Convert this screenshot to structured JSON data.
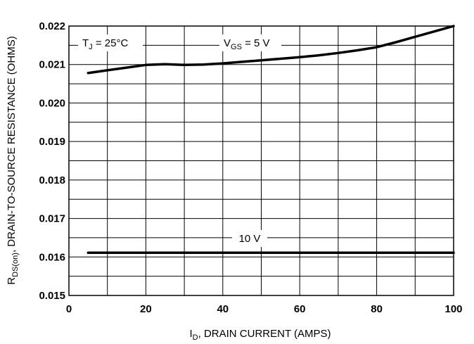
{
  "chart_data": {
    "type": "line",
    "xlabel": {
      "main": "I",
      "sub": "D",
      "rest": ", DRAIN CURRENT (AMPS)"
    },
    "ylabel": {
      "main": "R",
      "sub": "DS(on)",
      "rest": ", DRAIN-TO-SOURCE RESISTANCE (OHMS)"
    },
    "xlim": [
      0,
      100
    ],
    "ylim": [
      0.015,
      0.022
    ],
    "xticks": [
      "0",
      "20",
      "40",
      "60",
      "80",
      "100"
    ],
    "yticks": [
      "0.015",
      "0.016",
      "0.017",
      "0.018",
      "0.019",
      "0.020",
      "0.021",
      "0.022"
    ],
    "x_grid_step": 10,
    "y_grid_step": 0.0005,
    "grid": true,
    "annotations": {
      "temperature": {
        "main": "T",
        "sub": "J",
        "rest": " = 25°C"
      },
      "vgs5": {
        "main": "V",
        "sub": "GS",
        "rest": " = 5 V"
      },
      "vgs10": "10 V"
    },
    "series": [
      {
        "x": [
          5,
          10,
          15,
          20,
          25,
          30,
          35,
          40,
          45,
          50,
          55,
          60,
          65,
          70,
          75,
          80,
          85,
          90,
          95,
          100
        ],
        "y": [
          0.02078,
          0.02085,
          0.02092,
          0.02099,
          0.02101,
          0.02099,
          0.021,
          0.02103,
          0.02107,
          0.02111,
          0.02115,
          0.02119,
          0.02124,
          0.0213,
          0.02137,
          0.02145,
          0.02158,
          0.02172,
          0.02186,
          0.022
        ]
      },
      {
        "x": [
          5,
          100
        ],
        "y": [
          0.01611,
          0.01611
        ]
      }
    ],
    "line_color": "#000000"
  }
}
